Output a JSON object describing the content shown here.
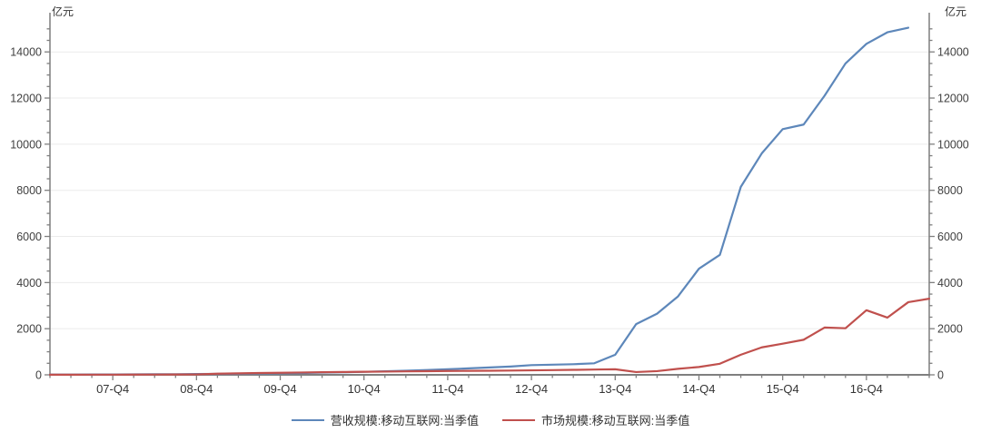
{
  "chart_data": {
    "type": "line",
    "unit": "亿元",
    "title": "",
    "xlabel": "",
    "ylabel": "亿元",
    "ylim": [
      0,
      15700
    ],
    "y_major_step": 2000,
    "y_minor_step": 500,
    "grid": "horizontal-major",
    "legend_position": "bottom-center",
    "x_major_labels": [
      "07-Q4",
      "08-Q4",
      "09-Q4",
      "10-Q4",
      "11-Q4",
      "12-Q4",
      "13-Q4",
      "14-Q4",
      "15-Q4",
      "16-Q4"
    ],
    "categories": [
      "07-Q1",
      "07-Q2",
      "07-Q3",
      "07-Q4",
      "08-Q1",
      "08-Q2",
      "08-Q3",
      "08-Q4",
      "09-Q1",
      "09-Q2",
      "09-Q3",
      "09-Q4",
      "10-Q1",
      "10-Q2",
      "10-Q3",
      "10-Q4",
      "11-Q1",
      "11-Q2",
      "11-Q3",
      "11-Q4",
      "12-Q1",
      "12-Q2",
      "12-Q3",
      "12-Q4",
      "13-Q1",
      "13-Q2",
      "13-Q3",
      "13-Q4",
      "14-Q1",
      "14-Q2",
      "14-Q3",
      "14-Q4",
      "15-Q1",
      "15-Q2",
      "15-Q3",
      "15-Q4",
      "16-Q1",
      "16-Q2",
      "16-Q3",
      "16-Q4",
      "17-Q1",
      "17-Q2",
      "17-Q3"
    ],
    "series": [
      {
        "key": "revenue",
        "name": "营收规模:移动互联网:当季值",
        "color": "#5d87ba",
        "values": [
          10,
          12,
          14,
          16,
          20,
          24,
          28,
          33,
          40,
          48,
          58,
          68,
          80,
          95,
          110,
          130,
          155,
          180,
          210,
          240,
          280,
          320,
          360,
          420,
          440,
          460,
          500,
          870,
          2200,
          2650,
          3400,
          4600,
          5200,
          8150,
          9600,
          10650,
          10850,
          12100,
          13500,
          14350,
          14850,
          15050,
          null
        ]
      },
      {
        "key": "market",
        "name": "市场规模:移动互联网:当季值",
        "color": "#c0504d",
        "values": [
          5,
          6,
          7,
          8,
          10,
          12,
          15,
          18,
          50,
          65,
          78,
          90,
          100,
          112,
          122,
          132,
          140,
          150,
          158,
          166,
          172,
          178,
          185,
          195,
          205,
          215,
          228,
          240,
          120,
          160,
          260,
          340,
          480,
          870,
          1190,
          1350,
          1520,
          2050,
          2020,
          2800,
          2480,
          3150,
          3300
        ]
      }
    ],
    "colors": {
      "axis": "#7f7f7f",
      "grid": "#ebebeb",
      "tick_text": "#404040",
      "background": "#ffffff"
    }
  }
}
